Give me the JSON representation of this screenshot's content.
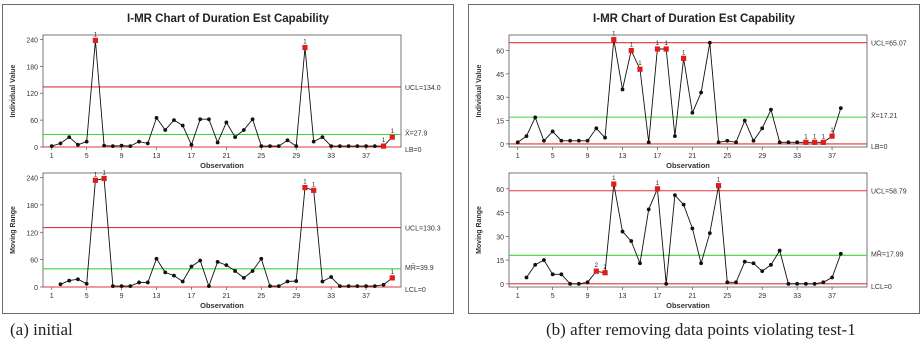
{
  "captions": {
    "a": "(a) initial",
    "b": "(b) after removing data points violating test-1"
  },
  "colors": {
    "ucl": "#e23636",
    "lcl": "#e23636",
    "center": "#3ed43e",
    "point": "#111111",
    "violation": "#e01c1c"
  },
  "chart_data": [
    {
      "type": "line",
      "title": "I-MR Chart of Duration Est Capability",
      "panel": "a",
      "xlabel": "Observation",
      "x_ticks": [
        1,
        5,
        9,
        13,
        17,
        21,
        25,
        29,
        33,
        37
      ],
      "subcharts": [
        {
          "name": "individual",
          "ylabel": "Individual Value",
          "ylim": [
            0,
            250
          ],
          "y_ticks": [
            "0",
            "60",
            "120",
            "180",
            "240"
          ],
          "y_tick_values": [
            0,
            60,
            120,
            180,
            240
          ],
          "ucl": 134.0,
          "center": 27.9,
          "lcl": 0,
          "ucl_label": "UCL=134.0",
          "center_label": "X̄=27.9",
          "lcl_label": "LB=0",
          "x": [
            1,
            2,
            3,
            4,
            5,
            6,
            7,
            8,
            9,
            10,
            11,
            12,
            13,
            14,
            15,
            16,
            17,
            18,
            19,
            20,
            21,
            22,
            23,
            24,
            25,
            26,
            27,
            28,
            29,
            30,
            31,
            32,
            33,
            34,
            35,
            36,
            37,
            38,
            39,
            40
          ],
          "values": [
            2,
            8,
            22,
            5,
            12,
            238,
            3,
            2,
            3,
            2,
            12,
            8,
            65,
            38,
            60,
            48,
            5,
            62,
            62,
            10,
            55,
            22,
            38,
            62,
            2,
            2,
            2,
            15,
            2,
            222,
            12,
            22,
            2,
            2,
            2,
            2,
            2,
            2,
            2,
            22
          ],
          "violations": [
            6,
            30,
            39,
            40
          ],
          "violation_labels": [
            {
              "x": 6,
              "label": "1"
            },
            {
              "x": 30,
              "label": "1"
            },
            {
              "x": 39,
              "label": "1"
            },
            {
              "x": 40,
              "label": "1"
            }
          ]
        },
        {
          "name": "moving-range",
          "ylabel": "Moving Range",
          "ylim": [
            0,
            250
          ],
          "y_ticks": [
            "0",
            "60",
            "120",
            "180",
            "240"
          ],
          "y_tick_values": [
            0,
            60,
            120,
            180,
            240
          ],
          "ucl": 130.3,
          "center": 39.9,
          "lcl": 0,
          "ucl_label": "UCL=130.3",
          "center_label": "MR̄=39.9",
          "lcl_label": "LCL=0",
          "x": [
            2,
            3,
            4,
            5,
            6,
            7,
            8,
            9,
            10,
            11,
            12,
            13,
            14,
            15,
            16,
            17,
            18,
            19,
            20,
            21,
            22,
            23,
            24,
            25,
            26,
            27,
            28,
            29,
            30,
            31,
            32,
            33,
            34,
            35,
            36,
            37,
            38,
            39,
            40
          ],
          "values": [
            6,
            14,
            17,
            7,
            234,
            238,
            2,
            2,
            2,
            10,
            10,
            62,
            32,
            25,
            12,
            45,
            58,
            2,
            55,
            48,
            35,
            20,
            35,
            62,
            2,
            2,
            12,
            13,
            218,
            212,
            12,
            22,
            2,
            2,
            2,
            2,
            2,
            5,
            20
          ],
          "violations": [
            6,
            7,
            30,
            31,
            40
          ],
          "violation_labels": [
            {
              "x": 6,
              "label": "1"
            },
            {
              "x": 7,
              "label": "1"
            },
            {
              "x": 30,
              "label": "1"
            },
            {
              "x": 31,
              "label": "1"
            },
            {
              "x": 40,
              "label": "1"
            }
          ]
        }
      ]
    },
    {
      "type": "line",
      "title": "I-MR Chart of Duration Est Capability",
      "panel": "b",
      "xlabel": "Observation",
      "x_ticks": [
        1,
        5,
        9,
        13,
        17,
        21,
        25,
        29,
        33,
        37
      ],
      "subcharts": [
        {
          "name": "individual",
          "ylabel": "Individual Value",
          "ylim": [
            -2,
            70
          ],
          "y_ticks": [
            "0",
            "15",
            "30",
            "45",
            "60"
          ],
          "y_tick_values": [
            0,
            15,
            30,
            45,
            60
          ],
          "ucl": 65.07,
          "center": 17.21,
          "lcl": 0,
          "ucl_label": "UCL=65.07",
          "center_label": "X̄=17.21",
          "lcl_label": "LB=0",
          "x": [
            1,
            2,
            3,
            4,
            5,
            6,
            7,
            8,
            9,
            10,
            11,
            12,
            13,
            14,
            15,
            16,
            17,
            18,
            19,
            20,
            21,
            22,
            23,
            24,
            25,
            26,
            27,
            28,
            29,
            30,
            31,
            32,
            33,
            34,
            35,
            36,
            37,
            38
          ],
          "values": [
            1,
            5,
            17,
            2,
            8,
            2,
            2,
            2,
            2,
            10,
            4,
            67,
            35,
            60,
            48,
            1,
            61,
            61,
            5,
            55,
            20,
            33,
            65,
            1,
            2,
            1,
            15,
            2,
            10,
            22,
            1,
            1,
            1,
            1,
            1,
            1,
            5,
            23
          ],
          "violations": [
            12,
            14,
            15,
            17,
            18,
            20,
            34,
            35,
            36,
            37
          ],
          "violation_labels": [
            {
              "x": 12,
              "label": "1"
            },
            {
              "x": 14,
              "label": "1"
            },
            {
              "x": 15,
              "label": "1"
            },
            {
              "x": 17,
              "label": "1"
            },
            {
              "x": 18,
              "label": "1"
            },
            {
              "x": 20,
              "label": "1"
            },
            {
              "x": 34,
              "label": "1"
            },
            {
              "x": 35,
              "label": "1"
            },
            {
              "x": 36,
              "label": "1"
            },
            {
              "x": 37,
              "label": "1"
            }
          ]
        },
        {
          "name": "moving-range",
          "ylabel": "Moving Range",
          "ylim": [
            -2,
            70
          ],
          "y_ticks": [
            "0",
            "15",
            "30",
            "45",
            "60"
          ],
          "y_tick_values": [
            0,
            15,
            30,
            45,
            60
          ],
          "ucl": 58.79,
          "center": 17.99,
          "lcl": 0,
          "ucl_label": "UCL=58.79",
          "center_label": "MR̄=17.99",
          "lcl_label": "LCL=0",
          "x": [
            2,
            3,
            4,
            5,
            6,
            7,
            8,
            9,
            10,
            11,
            12,
            13,
            14,
            15,
            16,
            17,
            18,
            19,
            20,
            21,
            22,
            23,
            24,
            25,
            26,
            27,
            28,
            29,
            30,
            31,
            32,
            33,
            34,
            35,
            36,
            37,
            38
          ],
          "values": [
            4,
            12,
            15,
            6,
            6,
            0,
            0,
            1,
            8,
            7,
            63,
            33,
            27,
            13,
            47,
            60,
            0,
            56,
            50,
            35,
            13,
            32,
            62,
            1,
            1,
            14,
            13,
            8,
            12,
            21,
            0,
            0,
            0,
            0,
            1,
            4,
            19
          ],
          "violations": [
            10,
            11,
            12,
            17,
            24
          ],
          "violation_labels": [
            {
              "x": 10,
              "label": "2"
            },
            {
              "x": 11,
              "label": "2"
            },
            {
              "x": 12,
              "label": "1"
            },
            {
              "x": 17,
              "label": "1"
            },
            {
              "x": 24,
              "label": "1"
            }
          ]
        }
      ]
    }
  ]
}
